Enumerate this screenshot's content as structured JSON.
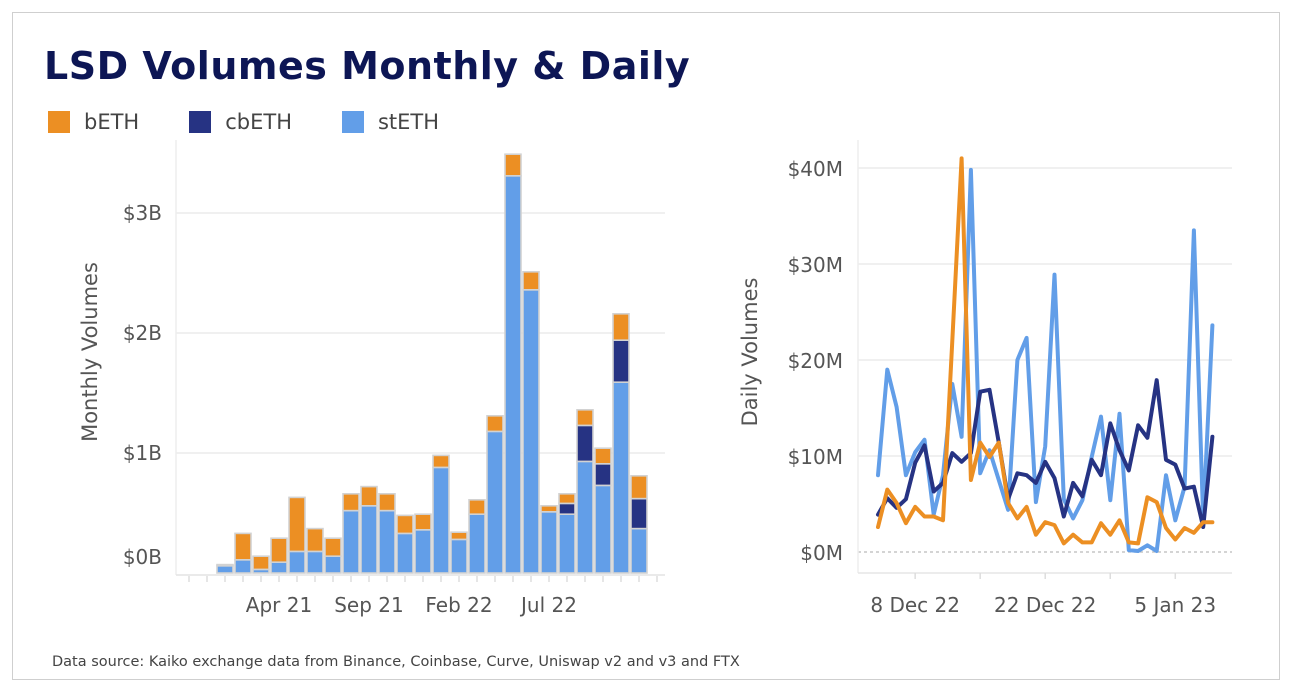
{
  "title": "LSD Volumes Monthly & Daily",
  "footer": "Data source: Kaiko exchange data from Binance, Coinbase, Curve, Uniswap v2 and v3 and FTX",
  "colors": {
    "bETH": "#ec8f23",
    "cbETH": "#263383",
    "stETH": "#629ee8"
  },
  "legend": [
    "bETH",
    "cbETH",
    "stETH"
  ],
  "chart_data": [
    {
      "type": "bar",
      "stacked": true,
      "ylabel": "Monthly Volumes",
      "ylim": [
        0,
        3.5
      ],
      "yticks": [
        "$0B",
        "$1B",
        "$2B",
        "$3B"
      ],
      "xticks": [
        {
          "index": 3,
          "label": "Apr 21"
        },
        {
          "index": 8,
          "label": "Sep 21"
        },
        {
          "index": 13,
          "label": "Feb 22"
        },
        {
          "index": 18,
          "label": "Jul 22"
        }
      ],
      "categories": [
        "2021-01",
        "2021-02",
        "2021-03",
        "2021-04",
        "2021-05",
        "2021-06",
        "2021-07",
        "2021-08",
        "2021-09",
        "2021-10",
        "2021-11",
        "2021-12",
        "2022-01",
        "2022-02",
        "2022-03",
        "2022-04",
        "2022-05",
        "2022-06",
        "2022-07",
        "2022-08",
        "2022-09",
        "2022-10",
        "2022-11",
        "2022-12"
      ],
      "unit": "$B",
      "series": [
        {
          "name": "stETH",
          "values": [
            0.06,
            0.11,
            0.03,
            0.09,
            0.18,
            0.18,
            0.14,
            0.52,
            0.56,
            0.52,
            0.33,
            0.36,
            0.88,
            0.28,
            0.49,
            1.18,
            3.31,
            2.36,
            0.51,
            0.49,
            0.93,
            0.73,
            1.59,
            0.37
          ]
        },
        {
          "name": "cbETH",
          "values": [
            0,
            0,
            0,
            0,
            0,
            0,
            0,
            0,
            0,
            0,
            0,
            0,
            0,
            0,
            0,
            0,
            0,
            0,
            0,
            0.09,
            0.3,
            0.18,
            0.35,
            0.25
          ]
        },
        {
          "name": "bETH",
          "values": [
            0.01,
            0.22,
            0.11,
            0.2,
            0.45,
            0.19,
            0.15,
            0.14,
            0.16,
            0.14,
            0.15,
            0.13,
            0.1,
            0.06,
            0.12,
            0.13,
            0.18,
            0.15,
            0.05,
            0.08,
            0.13,
            0.13,
            0.22,
            0.19
          ]
        }
      ],
      "grid": true
    },
    {
      "type": "line",
      "ylabel": "Daily Volumes",
      "ylim": [
        0,
        42
      ],
      "yticks": [
        "$0M",
        "$10M",
        "$20M",
        "$30M",
        "$40M"
      ],
      "xticks": [
        {
          "index": 4,
          "label": "8 Dec 22"
        },
        {
          "index": 18,
          "label": "22 Dec 22"
        },
        {
          "index": 32,
          "label": "5 Jan 23"
        }
      ],
      "x": [
        "2022-12-04",
        "2022-12-05",
        "2022-12-06",
        "2022-12-07",
        "2022-12-08",
        "2022-12-09",
        "2022-12-10",
        "2022-12-11",
        "2022-12-12",
        "2022-12-13",
        "2022-12-14",
        "2022-12-15",
        "2022-12-16",
        "2022-12-17",
        "2022-12-18",
        "2022-12-19",
        "2022-12-20",
        "2022-12-21",
        "2022-12-22",
        "2022-12-23",
        "2022-12-24",
        "2022-12-25",
        "2022-12-26",
        "2022-12-27",
        "2022-12-28",
        "2022-12-29",
        "2022-12-30",
        "2022-12-31",
        "2023-01-01",
        "2023-01-02",
        "2023-01-03",
        "2023-01-04",
        "2023-01-05",
        "2023-01-06",
        "2023-01-07",
        "2023-01-08",
        "2023-01-09"
      ],
      "unit": "$M",
      "series": [
        {
          "name": "stETH",
          "values": [
            8.0,
            19.0,
            15.1,
            8.0,
            10.4,
            11.7,
            3.9,
            8.0,
            17.5,
            12.0,
            39.8,
            8.2,
            10.6,
            7.5,
            4.4,
            20.0,
            22.3,
            5.2,
            11.0,
            28.9,
            5.5,
            3.5,
            5.4,
            9.9,
            14.1,
            5.4,
            14.4,
            0.2,
            0.1,
            0.7,
            0.1,
            8.0,
            3.3,
            6.8,
            33.5,
            3.3,
            23.6
          ]
        },
        {
          "name": "cbETH",
          "values": [
            3.9,
            5.6,
            4.6,
            5.5,
            9.3,
            11.1,
            6.3,
            7.2,
            10.3,
            9.4,
            10.3,
            16.7,
            16.9,
            11.4,
            5.5,
            8.2,
            8.0,
            7.2,
            9.4,
            7.7,
            3.7,
            7.2,
            5.8,
            9.6,
            8.0,
            13.4,
            10.6,
            8.5,
            13.2,
            11.9,
            17.9,
            9.6,
            9.1,
            6.6,
            6.8,
            2.6,
            12.0
          ]
        },
        {
          "name": "bETH",
          "values": [
            2.6,
            6.5,
            5.1,
            3.0,
            4.7,
            3.7,
            3.7,
            3.3,
            22.0,
            41.0,
            7.5,
            11.4,
            9.9,
            11.4,
            5.1,
            3.5,
            4.7,
            1.8,
            3.1,
            2.8,
            0.9,
            1.8,
            1.0,
            1.0,
            3.0,
            1.8,
            3.3,
            1.0,
            0.9,
            5.7,
            5.2,
            2.5,
            1.3,
            2.5,
            2.0,
            3.1,
            3.1
          ]
        }
      ],
      "grid": true
    }
  ]
}
